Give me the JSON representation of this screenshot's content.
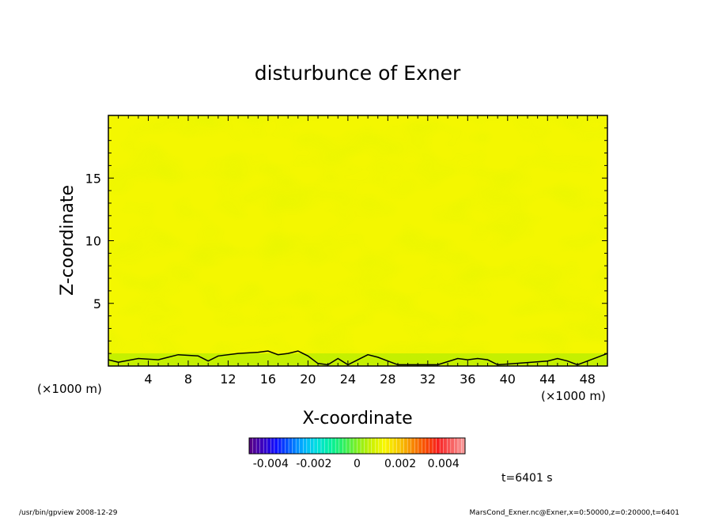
{
  "chart_data": {
    "type": "heatmap",
    "title": "disturbunce of Exner",
    "xlabel": "X-coordinate",
    "ylabel": "Z-coordinate",
    "x_unit": "(×1000 m)",
    "y_unit": "(×1000 m)",
    "xlim": [
      0,
      50
    ],
    "ylim": [
      0,
      20
    ],
    "x_ticks": [
      4,
      8,
      12,
      16,
      20,
      24,
      28,
      32,
      36,
      40,
      44,
      48
    ],
    "y_ticks": [
      5,
      10,
      15
    ],
    "field_levels_by_z": [
      {
        "z": 1,
        "value": 0.0012
      },
      {
        "z": 3,
        "value": 0.0009
      },
      {
        "z": 5,
        "value": 0.0008
      },
      {
        "z": 8,
        "value": 0.0007
      },
      {
        "z": 11,
        "value": 0.0005
      },
      {
        "z": 14,
        "value": 0.0004
      },
      {
        "z": 17,
        "value": 0.0005
      },
      {
        "z": 19.5,
        "value": 0.0006
      }
    ],
    "zero_contour_z": [
      [
        0,
        0.5
      ],
      [
        1,
        0.3
      ],
      [
        3,
        0.6
      ],
      [
        5,
        0.5
      ],
      [
        6,
        0.7
      ],
      [
        7,
        0.9
      ],
      [
        9,
        0.8
      ],
      [
        10,
        0.4
      ],
      [
        11,
        0.8
      ],
      [
        13,
        1.0
      ],
      [
        15,
        1.1
      ],
      [
        16,
        1.2
      ],
      [
        17,
        0.9
      ],
      [
        18,
        1.0
      ],
      [
        19,
        1.2
      ],
      [
        20,
        0.8
      ],
      [
        21,
        0.2
      ],
      [
        22,
        0.1
      ],
      [
        23,
        0.6
      ],
      [
        24,
        0.1
      ],
      [
        25,
        0.5
      ],
      [
        26,
        0.9
      ],
      [
        27,
        0.7
      ],
      [
        28,
        0.4
      ],
      [
        29,
        0.1
      ],
      [
        33,
        0.1
      ],
      [
        35,
        0.6
      ],
      [
        36,
        0.5
      ],
      [
        37,
        0.6
      ],
      [
        38,
        0.5
      ],
      [
        39,
        0.1
      ],
      [
        44,
        0.4
      ],
      [
        45,
        0.6
      ],
      [
        46,
        0.4
      ],
      [
        47,
        0.1
      ],
      [
        49,
        0.7
      ],
      [
        50,
        1.0
      ]
    ],
    "colorbar": {
      "ticks": [
        "-0.004",
        "-0.002",
        "0",
        "0.002",
        "0.004"
      ],
      "range": [
        -0.005,
        0.005
      ],
      "colors": [
        "#5a0080",
        "#3a00c0",
        "#1010ff",
        "#0060ff",
        "#00b0ff",
        "#00e0e0",
        "#00f0a0",
        "#30f060",
        "#80f020",
        "#c8f000",
        "#f8f800",
        "#f8d000",
        "#f89000",
        "#f85000",
        "#f82020",
        "#f86060",
        "#f8a0a0"
      ]
    }
  },
  "annotations": {
    "time": "t=6401 s",
    "footer_left": "/usr/bin/gpview   2008-12-29",
    "footer_right": "MarsCond_Exner.nc@Exner,x=0:50000,z=0:20000,t=6401"
  }
}
